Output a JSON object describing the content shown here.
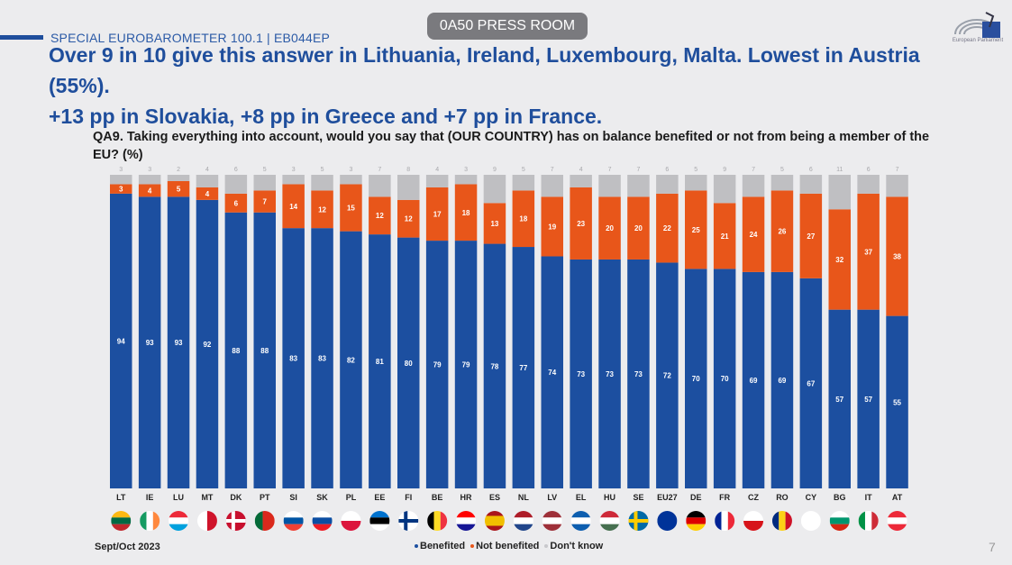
{
  "header": {
    "series_label": "SPECIAL EUROBAROMETER 100.1 | EB044EP",
    "press_badge": "0A50 PRESS ROOM",
    "logo_label": "European Parliament",
    "headline_line1": "Over 9 in 10 give this answer in Lithuania, Ireland, Luxembourg, Malta. Lowest in Austria (55%).",
    "headline_line2": "+13 pp in Slovakia, +8 pp in Greece and +7 pp in France."
  },
  "footer": {
    "date": "Sept/Oct 2023",
    "page_number": "7"
  },
  "colors": {
    "benefited": "#1c4fa0",
    "not_benefited": "#e8561a",
    "dont_know": "#bfbfc2",
    "title": "#1f4e9c"
  },
  "chart_data": {
    "type": "bar",
    "stacked": true,
    "title": "QA9. Taking everything into account, would you say that (OUR COUNTRY) has on balance benefited or not from being a member of the EU? (%)",
    "xlabel": "",
    "ylabel": "",
    "ylim": [
      0,
      100
    ],
    "grid": false,
    "legend_position": "bottom",
    "categories": [
      "LT",
      "IE",
      "LU",
      "MT",
      "DK",
      "PT",
      "SI",
      "SK",
      "PL",
      "EE",
      "FI",
      "BE",
      "HR",
      "ES",
      "NL",
      "LV",
      "EL",
      "HU",
      "SE",
      "EU27",
      "DE",
      "FR",
      "CZ",
      "RO",
      "CY",
      "BG",
      "IT",
      "AT"
    ],
    "flags": [
      "Lithuania",
      "Ireland",
      "Luxembourg",
      "Malta",
      "Denmark",
      "Portugal",
      "Slovenia",
      "Slovakia",
      "Poland",
      "Estonia",
      "Finland",
      "Belgium",
      "Croatia",
      "Spain",
      "Netherlands",
      "Latvia",
      "Greece",
      "Hungary",
      "Sweden",
      "European Union",
      "Germany",
      "France",
      "Czechia",
      "Romania",
      "Cyprus",
      "Bulgaria",
      "Italy",
      "Austria"
    ],
    "series": [
      {
        "name": "Benefited",
        "values": [
          94,
          93,
          93,
          92,
          88,
          88,
          83,
          83,
          82,
          81,
          80,
          79,
          79,
          78,
          77,
          74,
          73,
          73,
          73,
          72,
          70,
          70,
          69,
          69,
          67,
          57,
          57,
          55
        ]
      },
      {
        "name": "Not benefited",
        "values": [
          3,
          4,
          5,
          4,
          6,
          7,
          14,
          12,
          15,
          12,
          12,
          17,
          18,
          13,
          18,
          19,
          23,
          20,
          20,
          22,
          25,
          21,
          24,
          26,
          27,
          32,
          37,
          38
        ]
      },
      {
        "name": "Don't know",
        "values": [
          3,
          3,
          2,
          4,
          6,
          5,
          3,
          5,
          3,
          7,
          8,
          4,
          3,
          9,
          5,
          7,
          4,
          7,
          7,
          6,
          5,
          9,
          7,
          5,
          6,
          11,
          6,
          7
        ]
      }
    ]
  }
}
